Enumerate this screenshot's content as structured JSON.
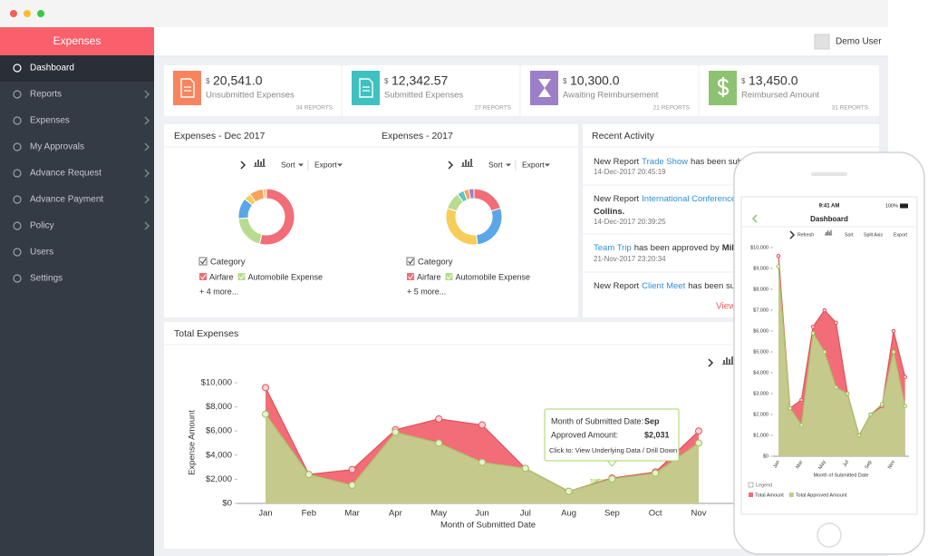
{
  "sidebar": {
    "title": "Expenses",
    "items": [
      "Dashboard",
      "Reports",
      "Expenses",
      "My Approvals",
      "Advance Request",
      "Advance Payment",
      "Policy",
      "Users",
      "Settings"
    ]
  },
  "header": {
    "user": "Demo User"
  },
  "cards": [
    {
      "currency": "$",
      "amount": "20,541.0",
      "label": "Unsubmitted Expenses",
      "reports": "34 REPORTS",
      "color": "#f7845e"
    },
    {
      "currency": "$",
      "amount": "12,342.57",
      "label": "Submitted Expenses",
      "reports": "27 REPORTS",
      "color": "#3fc1c0"
    },
    {
      "currency": "$",
      "amount": "10,300.0",
      "label": "Awaiting Reimbursement",
      "reports": "21 REPORTS",
      "color": "#9b7fc7"
    },
    {
      "currency": "$",
      "amount": "13,450.0",
      "label": "Reimbursed Amount",
      "reports": "31 REPORTS",
      "color": "#8cc271"
    }
  ],
  "toolbar": {
    "sort": "Sort",
    "export": "Export"
  },
  "activity": {
    "title": "Recent Activity",
    "items": [
      {
        "lines": [
          [
            {
              "text": "New Report"
            },
            {
              "text": "Trade Show",
              "link": true
            },
            {
              "text": "has been submi"
            }
          ]
        ],
        "date": "14-Dec-2017 20:45:19"
      },
      {
        "lines": [
          [
            {
              "text": "New Report"
            },
            {
              "text": "International Conference",
              "link": true
            }
          ],
          [
            {
              "text": "Collins.",
              "bold": true
            }
          ]
        ],
        "date": "14-Dec-2017 20:39:25"
      },
      {
        "lines": [
          [
            {
              "text": "Team Trip",
              "link": true
            },
            {
              "text": "has been approved by"
            },
            {
              "text": "Mike",
              "bold": true
            }
          ]
        ],
        "date": "21-Nov-2017 23:20:34"
      },
      {
        "lines": [
          [
            {
              "text": "New Report"
            },
            {
              "text": "Client Meet",
              "link": true
            },
            {
              "text": "has been sub"
            }
          ]
        ]
      }
    ],
    "view": "View"
  },
  "total": {
    "title": "Total Expenses"
  },
  "tooltip": {
    "month_label": "Month of Submitted Date:",
    "month": "Sep",
    "amount_label": "Approved Amount:",
    "amount": "$2,031",
    "action": "Click to: View Underlying Data / Drill Down"
  },
  "phone": {
    "time": "9:41 AM",
    "battery": "100%",
    "title": "Dashboard",
    "toolbar": [
      "Refresh",
      "Sort",
      "Split Axis",
      "Export"
    ]
  },
  "chart_data": [
    {
      "type": "area",
      "xlabel": "Month of Submitted Date",
      "ylabel": "Expense Amount",
      "categories": [
        "Jan",
        "Feb",
        "Mar",
        "Apr",
        "May",
        "Jun",
        "Jul",
        "Aug",
        "Sep",
        "Oct",
        "Nov"
      ],
      "series": [
        {
          "color": "#f26d77",
          "values": [
            9600,
            2400,
            2800,
            6100,
            7000,
            6500,
            2900,
            1000,
            2100,
            2600,
            6000
          ]
        },
        {
          "color": "#c6c98c",
          "values": [
            7400,
            2400,
            1500,
            5900,
            5000,
            3400,
            2900,
            1000,
            2031,
            2500,
            5000
          ]
        }
      ],
      "ylim": [
        0,
        10000
      ],
      "yticks": [
        {
          "value": 0,
          "label": "$0"
        },
        {
          "value": 2000,
          "label": "$2,000"
        },
        {
          "value": 4000,
          "label": "$4,000"
        },
        {
          "value": 6000,
          "label": "$6,000"
        },
        {
          "value": 8000,
          "label": "$8,000"
        },
        {
          "value": 10000,
          "label": "$10,000"
        }
      ],
      "grid": false
    },
    {
      "type": "area",
      "xlabel": "Month of Submitted Date",
      "legend_title": "Legend",
      "categories": [
        "Jan",
        null,
        "Mar",
        null,
        "May",
        null,
        "Jul",
        null,
        "Sep",
        null,
        "Nov",
        null
      ],
      "series": [
        {
          "name": "Total Amount",
          "color": "#f26d77",
          "values": [
            9600,
            2300,
            2700,
            6200,
            7000,
            6400,
            3000,
            1000,
            2000,
            2400,
            6000,
            3800
          ]
        },
        {
          "name": "Total Approved Amount",
          "color": "#c6c98c",
          "values": [
            9100,
            2300,
            1500,
            5900,
            5000,
            3300,
            3000,
            1000,
            2000,
            2500,
            5000,
            2400
          ]
        }
      ],
      "ylim": [
        0,
        10000
      ],
      "yticks": [
        {
          "value": 0,
          "label": "$0"
        },
        {
          "value": 1000,
          "label": "$1,000"
        },
        {
          "value": 2000,
          "label": "$2,000"
        },
        {
          "value": 3000,
          "label": "$3,000"
        },
        {
          "value": 4000,
          "label": "$4,000"
        },
        {
          "value": 5000,
          "label": "$5,000"
        },
        {
          "value": 6000,
          "label": "$6,000"
        },
        {
          "value": 7000,
          "label": "$7,000"
        },
        {
          "value": 8000,
          "label": "$8,000"
        },
        {
          "value": 9000,
          "label": "$9,000"
        },
        {
          "value": 10000,
          "label": "$10,000"
        }
      ],
      "grid": false
    },
    {
      "type": "donut",
      "title": "Expenses - Dec 2017",
      "legend_title": "Category",
      "more": "+ 4 more...",
      "categories": [
        "Airfare",
        "Automobile Expense",
        null,
        null,
        null,
        null
      ],
      "values": [
        54,
        20,
        12,
        4,
        8,
        2
      ],
      "colors": [
        "#f26d77",
        "#b7dc8f",
        "#5aa6e8",
        "#f5cd58",
        "#f7a35c",
        "#f9c08a"
      ]
    },
    {
      "type": "donut",
      "title": "Expenses - 2017",
      "legend_title": "Category",
      "more": "+ 5 more...",
      "categories": [
        "Airfare",
        null,
        null,
        "Automobile Expense",
        null,
        null,
        null
      ],
      "values": [
        20,
        28,
        32,
        10,
        4,
        3,
        3
      ],
      "colors": [
        "#f26d77",
        "#5aa6e8",
        "#f5cd58",
        "#b7dc8f",
        "#64c4c0",
        "#f7a35c",
        "#9b7fc7"
      ]
    }
  ]
}
